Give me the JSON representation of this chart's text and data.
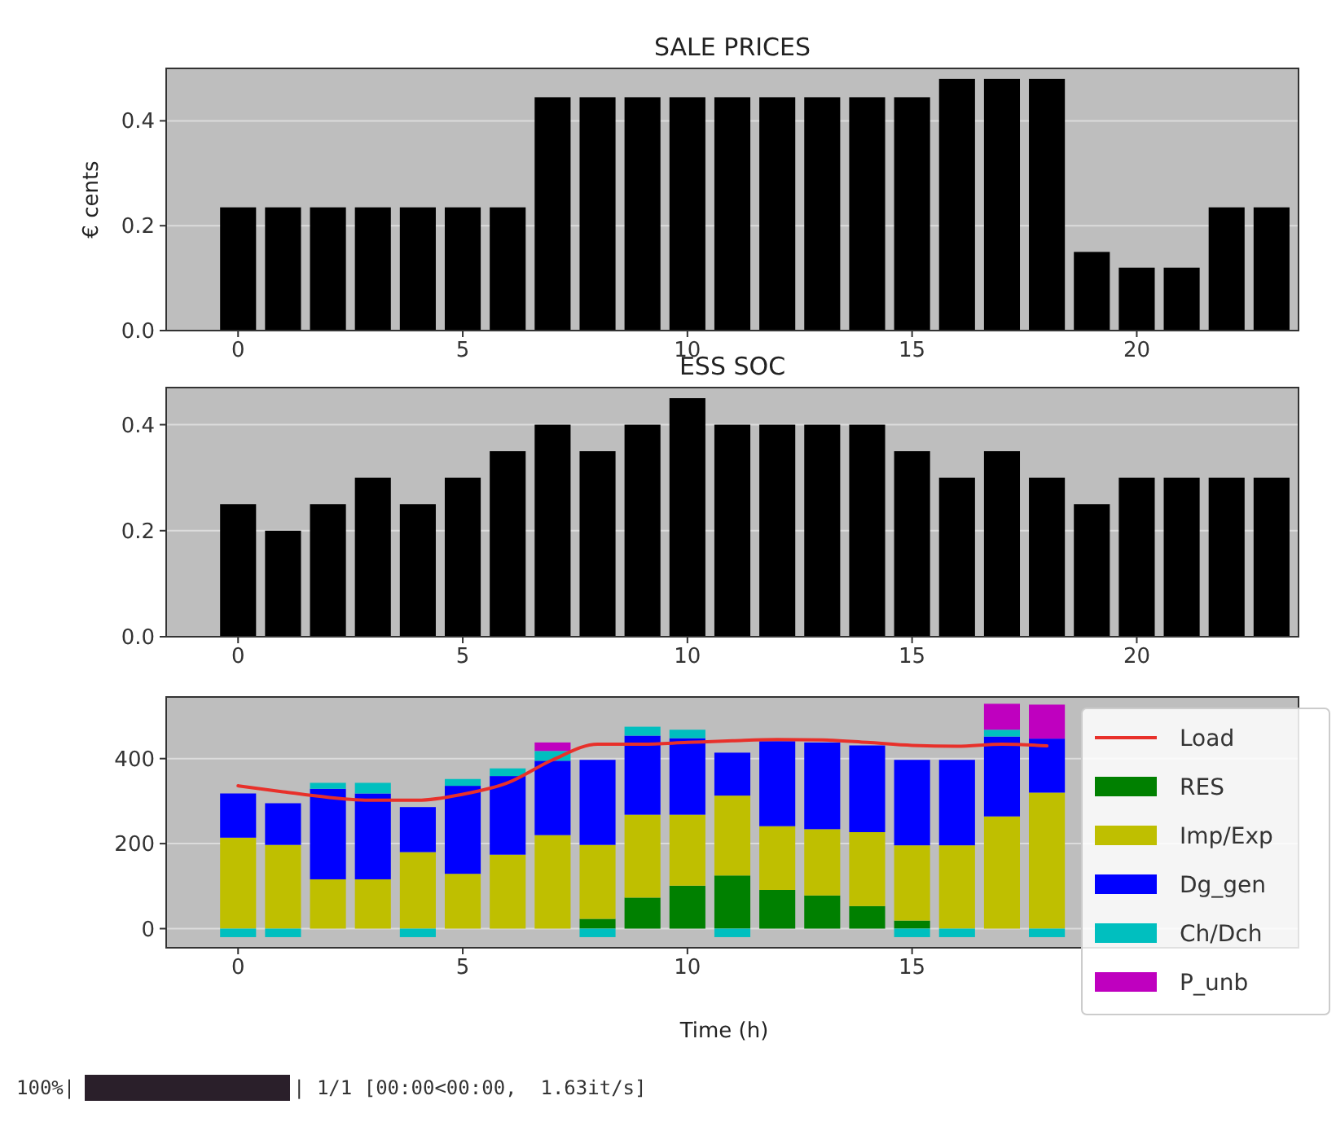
{
  "chart_data": [
    {
      "type": "bar",
      "title": "SALE PRICES",
      "ylabel": "€ cents",
      "x": [
        0,
        1,
        2,
        3,
        4,
        5,
        6,
        7,
        8,
        9,
        10,
        11,
        12,
        13,
        14,
        15,
        16,
        17,
        18,
        19,
        20,
        21,
        22,
        23
      ],
      "values": [
        0.235,
        0.235,
        0.235,
        0.235,
        0.235,
        0.235,
        0.235,
        0.445,
        0.445,
        0.445,
        0.445,
        0.445,
        0.445,
        0.445,
        0.445,
        0.445,
        0.48,
        0.48,
        0.48,
        0.15,
        0.12,
        0.12,
        0.235,
        0.235
      ],
      "color": "#000000",
      "xlim": [
        -1.6,
        23.6
      ],
      "xticks": [
        0,
        5,
        10,
        15,
        20
      ],
      "ylim": [
        0,
        0.5
      ],
      "yticks": [
        {
          "value": 0,
          "label": "0.0"
        },
        {
          "value": 0.2,
          "label": "0.2"
        },
        {
          "value": 0.4,
          "label": "0.4"
        }
      ],
      "grid": "y"
    },
    {
      "type": "bar",
      "title": "ESS SOC",
      "x": [
        0,
        1,
        2,
        3,
        4,
        5,
        6,
        7,
        8,
        9,
        10,
        11,
        12,
        13,
        14,
        15,
        16,
        17,
        18,
        19,
        20,
        21,
        22,
        23
      ],
      "values": [
        0.25,
        0.2,
        0.25,
        0.3,
        0.25,
        0.3,
        0.35,
        0.4,
        0.35,
        0.4,
        0.45,
        0.4,
        0.4,
        0.4,
        0.4,
        0.35,
        0.3,
        0.35,
        0.3,
        0.25,
        0.3,
        0.3,
        0.3,
        0.3
      ],
      "color": "#000000",
      "xlim": [
        -1.6,
        23.6
      ],
      "xticks": [
        0,
        5,
        10,
        15,
        20
      ],
      "ylim": [
        0,
        0.47
      ],
      "yticks": [
        {
          "value": 0,
          "label": "0.0"
        },
        {
          "value": 0.2,
          "label": "0.2"
        },
        {
          "value": 0.4,
          "label": "0.4"
        }
      ],
      "grid": "y"
    },
    {
      "type": "bar",
      "stacked": true,
      "xlabel": "Time (h)",
      "x": [
        0,
        1,
        2,
        3,
        4,
        5,
        6,
        7,
        8,
        9,
        10,
        11,
        12,
        13,
        14,
        15,
        16,
        17,
        18
      ],
      "series": [
        {
          "name": "Load",
          "type": "line",
          "color": "#e8302a",
          "values": [
            336,
            322,
            309,
            302,
            302,
            316,
            343,
            397,
            434,
            434,
            438,
            442,
            445,
            444,
            438,
            431,
            429,
            434,
            430
          ]
        },
        {
          "name": "RES",
          "color": "#008000",
          "values": [
            0,
            0,
            0,
            0,
            0,
            0,
            0,
            0,
            23,
            73,
            101,
            125,
            91,
            78,
            53,
            19,
            0,
            0,
            0
          ]
        },
        {
          "name": "Imp/Exp",
          "color": "#bfbf00",
          "values": [
            214,
            197,
            116,
            116,
            180,
            129,
            174,
            220,
            174,
            195,
            167,
            188,
            150,
            156,
            174,
            177,
            196,
            264,
            320
          ]
        },
        {
          "name": "Dg_gen",
          "color": "#0000ff",
          "values": [
            104,
            98,
            213,
            202,
            106,
            207,
            185,
            175,
            200,
            186,
            180,
            101,
            200,
            204,
            204,
            201,
            201,
            188,
            127
          ]
        },
        {
          "name": "Ch/Dch",
          "color": "#00bfbf",
          "values": [
            -20,
            -20,
            14,
            25,
            -20,
            16,
            18,
            23,
            -20,
            21,
            20,
            -20,
            0,
            0,
            0,
            -20,
            -20,
            16,
            -20
          ]
        },
        {
          "name": "P_unb",
          "color": "#bf00bf",
          "values": [
            0,
            0,
            0,
            0,
            0,
            0,
            0,
            20,
            0,
            0,
            0,
            0,
            0,
            0,
            0,
            0,
            0,
            61,
            80
          ]
        }
      ],
      "xlim": [
        -1.6,
        23.6
      ],
      "xticks": [
        0,
        5,
        10,
        15
      ],
      "ylim": [
        -45,
        545
      ],
      "yticks": [
        0,
        200,
        400
      ],
      "grid": "y",
      "legend": "right",
      "annotations": [
        "100%|",
        "| 1/1 [00:00<00:00,  1.63it/s]"
      ]
    }
  ]
}
